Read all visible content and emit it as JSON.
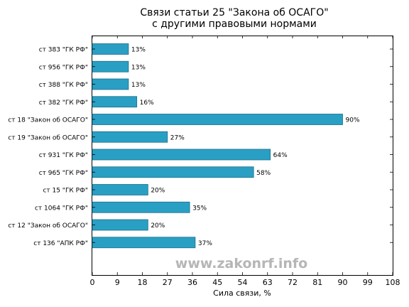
{
  "chart_data": {
    "type": "bar",
    "orientation": "horizontal",
    "title": "Связи статьи 25 \"Закона об ОСАГО\"",
    "subtitle": "с другими правовыми нормами",
    "xlabel": "Сила связи, %",
    "xlim": [
      0,
      108
    ],
    "xticks": [
      0,
      9,
      18,
      27,
      36,
      45,
      54,
      63,
      72,
      81,
      90,
      99,
      108
    ],
    "categories": [
      "ст 383 \"ГК РФ\"",
      "ст 956 \"ГК РФ\"",
      "ст 388 \"ГК РФ\"",
      "ст 382 \"ГК РФ\"",
      "ст 18 \"Закон об ОСАГО\"",
      "ст 19 \"Закон об ОСАГО\"",
      "ст 931 \"ГК РФ\"",
      "ст 965 \"ГК РФ\"",
      "ст 15 \"ГК РФ\"",
      "ст 1064 \"ГК РФ\"",
      "ст 12 \"Закон об ОСАГО\"",
      "ст 136 \"АПК РФ\""
    ],
    "values": [
      13,
      13,
      13,
      16,
      90,
      27,
      64,
      58,
      20,
      35,
      20,
      37
    ],
    "value_labels": [
      "13%",
      "13%",
      "13%",
      "16%",
      "90%",
      "27%",
      "64%",
      "58%",
      "20%",
      "35%",
      "20%",
      "37%"
    ],
    "bar_color": "#2a9fc4",
    "grid": false
  },
  "watermark": "www.zakonrf.info"
}
